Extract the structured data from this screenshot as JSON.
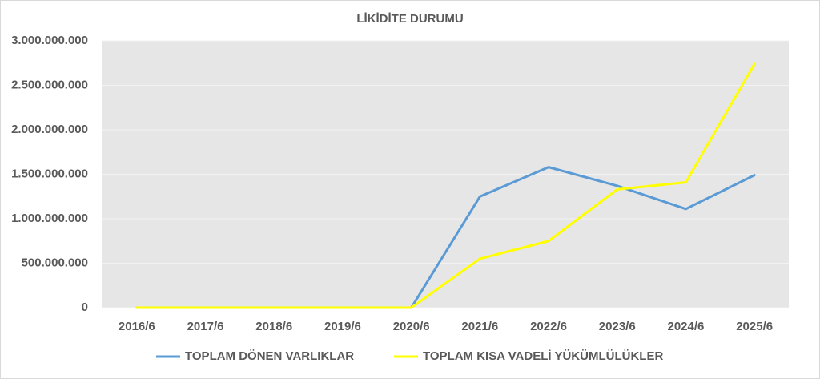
{
  "chart_data": {
    "type": "line",
    "title": "LİKİDİTE DURUMU",
    "categories": [
      "2016/6",
      "2017/6",
      "2018/6",
      "2019/6",
      "2020/6",
      "2021/6",
      "2022/6",
      "2023/6",
      "2024/6",
      "2025/6"
    ],
    "series": [
      {
        "name": "TOPLAM DÖNEN VARLIKLAR",
        "color": "#5b9bd5",
        "values": [
          0,
          0,
          0,
          0,
          0,
          1250000000,
          1580000000,
          1370000000,
          1110000000,
          1490000000
        ]
      },
      {
        "name": "TOPLAM KISA VADELİ YÜKÜMLÜLÜKLER",
        "color": "#ffff00",
        "values": [
          0,
          0,
          0,
          0,
          0,
          550000000,
          750000000,
          1330000000,
          1410000000,
          2740000000
        ]
      }
    ],
    "ylim": [
      0,
      3000000000
    ],
    "yticks": [
      0,
      {
        "value": 500000000,
        "label": "500.000.000"
      },
      {
        "value": 1000000000,
        "label": "1.000.000.000"
      },
      {
        "value": 1500000000,
        "label": "1.500.000.000"
      },
      {
        "value": 2000000000,
        "label": "2.000.000.000"
      },
      {
        "value": 2500000000,
        "label": "2.500.000.000"
      },
      {
        "value": 3000000000,
        "label": "3.000.000.000"
      }
    ],
    "grid": true,
    "legend": "bottom"
  }
}
